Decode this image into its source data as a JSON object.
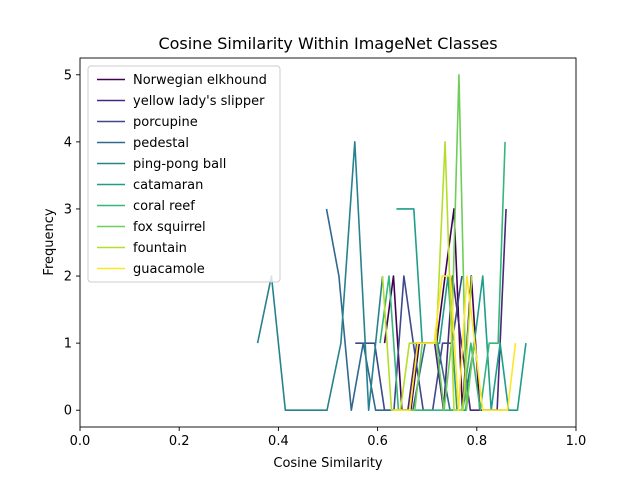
{
  "chart_data": {
    "type": "line",
    "title": "Cosine Similarity Within ImageNet Classes",
    "xlabel": "Cosine Similarity",
    "ylabel": "Frequency",
    "xlim": [
      0.0,
      1.0
    ],
    "ylim": [
      -0.25,
      5.25
    ],
    "xticks": [
      "0.0",
      "0.2",
      "0.4",
      "0.6",
      "0.8",
      "1.0"
    ],
    "yticks": [
      "0",
      "1",
      "2",
      "3",
      "4",
      "5"
    ],
    "grid": false,
    "legend_position": "top-left",
    "series": [
      {
        "name": "Norwegian elkhound",
        "color": "#440154",
        "x": [
          0.614,
          0.632,
          0.649,
          0.667,
          0.684,
          0.702,
          0.719,
          0.736,
          0.754,
          0.771,
          0.789,
          0.806,
          0.824,
          0.841,
          0.859
        ],
        "y": [
          1,
          2,
          0,
          0,
          1,
          1,
          1,
          2,
          3,
          0,
          2,
          0,
          0,
          0,
          0
        ]
      },
      {
        "name": "yellow lady's slipper",
        "color": "#482878",
        "x": [
          0.643,
          0.661,
          0.679,
          0.697,
          0.715,
          0.733,
          0.751,
          0.769,
          0.787,
          0.805,
          0.823,
          0.841,
          0.859
        ],
        "y": [
          0,
          0,
          1,
          1,
          1,
          0,
          2,
          1,
          0,
          0,
          0,
          0,
          3
        ]
      },
      {
        "name": "porcupine",
        "color": "#3e4989",
        "x": [
          0.555,
          0.575,
          0.594,
          0.614,
          0.633,
          0.653,
          0.672,
          0.692,
          0.711,
          0.731,
          0.75,
          0.77
        ],
        "y": [
          1,
          1,
          1,
          0,
          0,
          2,
          1,
          0,
          0,
          1,
          1,
          2
        ]
      },
      {
        "name": "pedestal",
        "color": "#31688e",
        "x": [
          0.497,
          0.522,
          0.547,
          0.571,
          0.596,
          0.621,
          0.646,
          0.671,
          0.696,
          0.721,
          0.746,
          0.771,
          0.796
        ],
        "y": [
          3,
          2,
          0,
          1,
          0,
          0,
          0,
          0,
          1,
          1,
          0,
          0,
          1
        ]
      },
      {
        "name": "ping-pong ball",
        "color": "#26828e",
        "x": [
          0.358,
          0.386,
          0.414,
          0.442,
          0.47,
          0.498,
          0.526,
          0.554,
          0.582,
          0.61
        ],
        "y": [
          1,
          2,
          0,
          0,
          0,
          0,
          1,
          4,
          0,
          2
        ]
      },
      {
        "name": "catamaran",
        "color": "#1f9e89",
        "x": [
          0.638,
          0.655,
          0.673,
          0.69,
          0.708,
          0.725,
          0.742,
          0.76,
          0.777,
          0.795,
          0.812,
          0.829,
          0.847,
          0.864,
          0.882,
          0.899
        ],
        "y": [
          3,
          3,
          3,
          1,
          1,
          1,
          2,
          0,
          0,
          1,
          2,
          0,
          1,
          0,
          0,
          1
        ]
      },
      {
        "name": "coral reef",
        "color": "#35b779",
        "x": [
          0.605,
          0.623,
          0.642,
          0.66,
          0.678,
          0.697,
          0.715,
          0.733,
          0.752,
          0.77,
          0.788,
          0.807,
          0.825,
          0.843,
          0.857
        ],
        "y": [
          1,
          2,
          0,
          0,
          0,
          0,
          0,
          0,
          0,
          0,
          1,
          0,
          1,
          1,
          4
        ]
      },
      {
        "name": "fox squirrel",
        "color": "#6ece58",
        "x": [
          0.63,
          0.645,
          0.66,
          0.675,
          0.69,
          0.705,
          0.719,
          0.734,
          0.749,
          0.764,
          0.779,
          0.794
        ],
        "y": [
          0,
          0,
          0,
          0,
          1,
          1,
          1,
          0,
          1,
          5,
          0,
          1
        ]
      },
      {
        "name": "fountain",
        "color": "#b5de2b",
        "x": [
          0.61,
          0.628,
          0.646,
          0.664,
          0.682,
          0.7,
          0.718,
          0.736,
          0.754,
          0.772,
          0.79
        ],
        "y": [
          2,
          0,
          0,
          1,
          1,
          1,
          1,
          4,
          0,
          0,
          2
        ]
      },
      {
        "name": "guacamole",
        "color": "#fde725",
        "x": [
          0.632,
          0.648,
          0.665,
          0.681,
          0.698,
          0.714,
          0.73,
          0.747,
          0.763,
          0.78,
          0.796,
          0.812,
          0.829,
          0.845,
          0.862,
          0.878
        ],
        "y": [
          0,
          0,
          0,
          1,
          1,
          1,
          2,
          2,
          0,
          2,
          1,
          0,
          0,
          0,
          0,
          1
        ]
      }
    ]
  }
}
